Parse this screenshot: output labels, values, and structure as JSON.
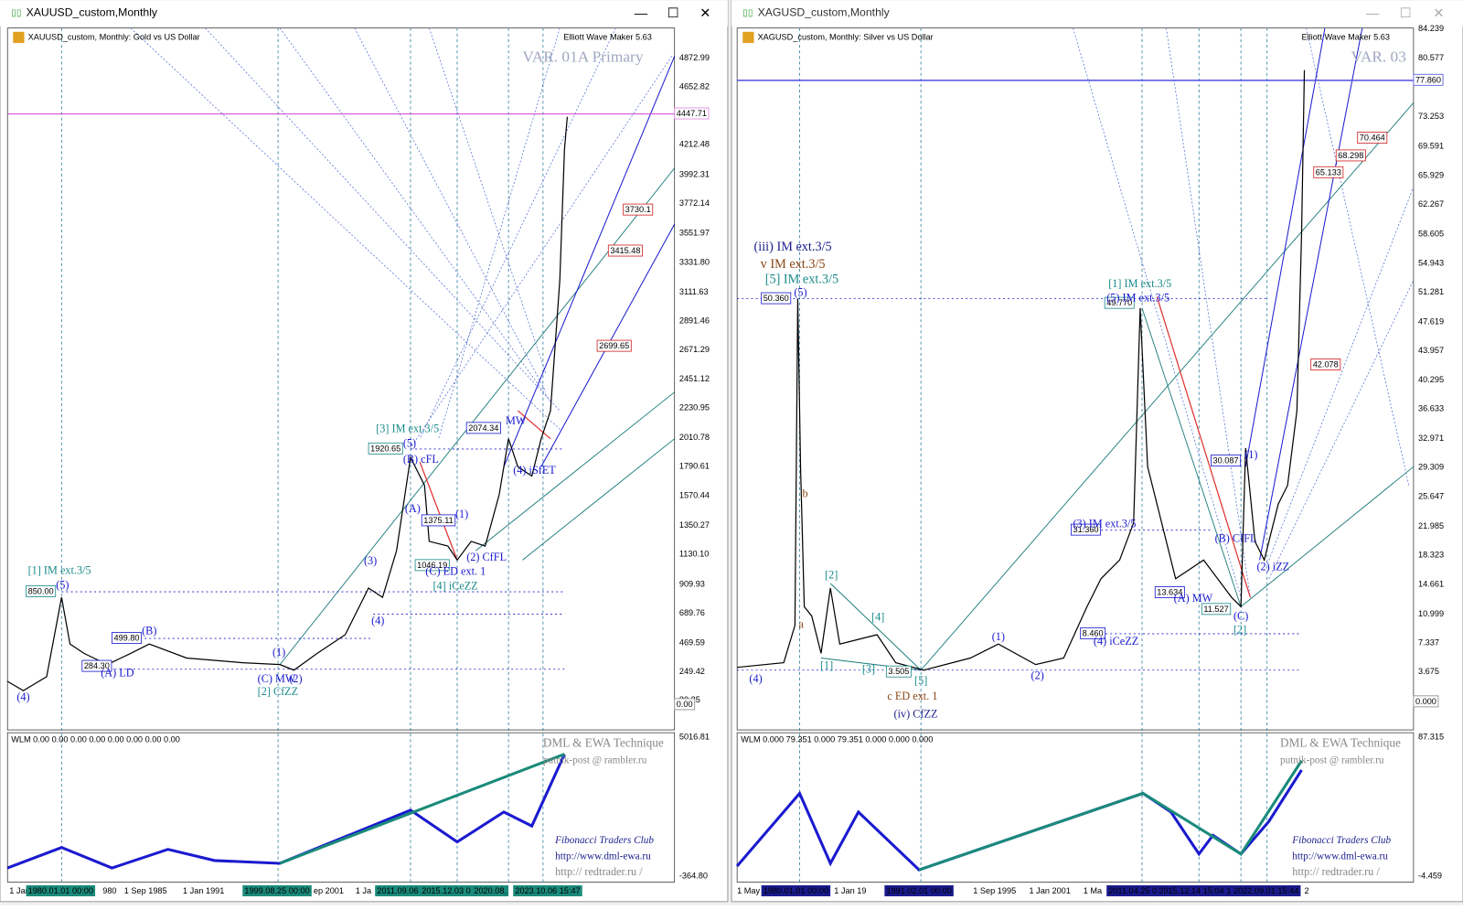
{
  "windows": [
    {
      "title": "XAUUSD_custom,Monthly",
      "symbol": "XAUUSD_custom, Monthly:  Gold vs US Dollar",
      "indicator_name": "Elliott Wave Maker 5.63",
      "variant": "VAR. 01A Primary",
      "price_axis": [
        "4872.99",
        "4652.82",
        "4212.48",
        "3992.31",
        "3772.14",
        "3551.97",
        "3331.80",
        "3111.63",
        "2891.46",
        "2671.29",
        "2451.12",
        "2230.95",
        "2010.78",
        "1790.61",
        "1570.44",
        "1350.27",
        "1130.10",
        "909.93",
        "689.76",
        "469.59",
        "249.42",
        "30.25"
      ],
      "price_tags": [
        "4447.71",
        "3730.1",
        "3415.48",
        "2699.65",
        "0.00"
      ],
      "level_boxes": [
        "850.00",
        "284.30",
        "499.80",
        "1920.65",
        "1375.11",
        "1046.19",
        "2074.34"
      ],
      "wave_labels": [
        "[1] IM ext.3/5",
        "(5)",
        "(4)",
        "(A) LD",
        "(B)",
        "(1)",
        "(C) MW",
        "(2)",
        "[2] CfZZ",
        "(3)",
        "(4)",
        "[3] IM ext.3/5",
        "(5)",
        "(B) cFL",
        "(A)",
        "(C) ED ext. 1",
        "[4] iCeZZ",
        "(1)",
        "(2) CfFL",
        "MW",
        "(4) iSfET"
      ],
      "subwindow_label": "WLM 0.00 0.00 0.00 0.00 0.00 0.00 0.00 0.00",
      "subwindow_axis": [
        "5016.81",
        "-364.80"
      ],
      "footer": [
        "DML & EWA Technique",
        "putnik-post @ rambler.ru",
        "Fibonacci   Traders   Club",
        "http://www.dml-ewa.ru",
        "http://  redtrader.ru /"
      ],
      "time_axis": [
        "1 Jan",
        "1980.01.01 00:00",
        "980",
        "1 Sep 1985",
        "1 Jan 1991",
        "1999.08.25 00:00",
        "ep 2001",
        "1 Ja",
        "2011.09.06",
        "2015.12.03 0",
        "2020.08.",
        "2023.10.06 15:47"
      ]
    },
    {
      "title": "XAGUSD_custom,Monthly",
      "symbol": "XAGUSD_custom, Monthly:  Silver vs US Dollar",
      "indicator_name": "Elliott Wave Maker 5.63",
      "variant": "VAR. 03",
      "price_axis": [
        "84.239",
        "80.577",
        "73.253",
        "69.591",
        "65.929",
        "62.267",
        "58.605",
        "54.943",
        "51.281",
        "47.619",
        "43.957",
        "40.295",
        "36.633",
        "32.971",
        "29.309",
        "25.647",
        "21.985",
        "18.323",
        "14.661",
        "10.999",
        "7.337",
        "3.675"
      ],
      "price_tags": [
        "77.860",
        "70.464",
        "68.298",
        "65.133",
        "42.078",
        "0.000"
      ],
      "level_boxes": [
        "50.360",
        "3.505",
        "49.770",
        "31.360",
        "8.460",
        "13.634",
        "11.527",
        "30.087"
      ],
      "wave_labels": [
        "(iii) IM ext.3/5",
        "v IM ext.3/5",
        "[5] IM ext.3/5",
        "(5)",
        "b",
        "a",
        "[2]",
        "[4]",
        "[1]",
        "[3]",
        "[5]",
        "c ED ext. 1",
        "(iv) CfZZ",
        "(4)",
        "(1)",
        "(2)",
        "[1] IM ext.3/5",
        "(5) IM ext.3/5",
        "(3) IM ext.3/5",
        "(4) iCeZZ",
        "(A) MW",
        "(C)",
        "[2]",
        "(B) CfFL",
        "(1)",
        "(2) iZZ"
      ],
      "subwindow_label": "WLM 0.000 79.351 0.000 79.351 0.000 0.000 0.000",
      "subwindow_axis": [
        "87.315",
        "-4.459"
      ],
      "footer": [
        "DML & EWA Technique",
        "putnik-post @ rambler.ru",
        "Fibonacci   Traders   Club",
        "http://www.dml-ewa.ru",
        "http://  redtrader.ru /"
      ],
      "time_axis": [
        "1 May",
        "1980.01.01 00:00",
        "1 Jan 19",
        "1991.02.01 00:00",
        "1 Sep 1995",
        "1 Jan 2001",
        "1 Ma",
        "2011.04.25 0",
        "2015.12.14 15:04 1",
        "2022.09.01 15:44",
        "2"
      ]
    }
  ]
}
